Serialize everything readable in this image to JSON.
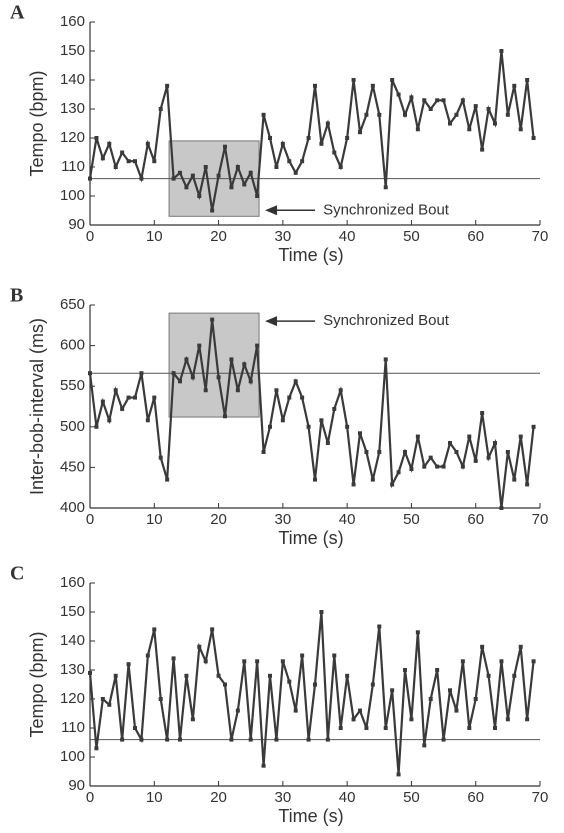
{
  "chart_data": [
    {
      "type": "line",
      "label": "A",
      "xlabel": "Time (s)",
      "ylabel": "Tempo (bpm)",
      "xlim": [
        0,
        70
      ],
      "xticks": [
        0,
        10,
        20,
        30,
        40,
        50,
        60,
        70
      ],
      "ylim": [
        90,
        160
      ],
      "yticks": [
        90,
        100,
        110,
        120,
        130,
        140,
        150,
        160
      ],
      "reference_line": 106,
      "highlight": {
        "x": [
          12.3,
          26.3
        ],
        "y": [
          93,
          119
        ],
        "color": "#c8c8c8"
      },
      "annotation": "Synchronized Bout",
      "x": [
        0,
        1,
        2,
        3,
        4,
        5,
        6,
        7,
        8,
        9,
        10,
        11,
        12,
        13,
        14,
        15,
        16,
        17,
        18,
        19,
        20,
        21,
        22,
        23,
        24,
        25,
        26,
        27,
        28,
        29,
        30,
        31,
        32,
        33,
        34,
        35,
        36,
        37,
        38,
        39,
        40,
        41,
        42,
        43,
        44,
        45,
        46,
        47,
        48,
        49,
        50,
        51,
        52,
        53,
        54,
        55,
        56,
        57,
        58,
        59,
        60,
        61,
        62,
        63,
        64,
        65,
        66,
        67,
        68,
        69
      ],
      "series": [
        {
          "color": "#3a3a3a",
          "values": [
            106,
            120,
            113,
            118,
            110,
            115,
            112,
            112,
            106,
            118,
            112,
            130,
            138,
            106,
            108,
            103,
            107,
            100,
            110,
            95,
            107,
            117,
            103,
            110,
            104,
            108,
            100,
            128,
            120,
            110,
            118,
            112,
            108,
            112,
            120,
            138,
            118,
            125,
            115,
            110,
            120,
            140,
            122,
            128,
            138,
            128,
            103,
            140,
            135,
            128,
            134,
            123,
            133,
            130,
            133,
            133,
            125,
            128,
            133,
            123,
            131,
            116,
            130,
            125,
            150,
            128,
            138,
            123,
            140,
            120
          ]
        }
      ]
    },
    {
      "type": "line",
      "label": "B",
      "xlabel": "Time (s)",
      "ylabel": "Inter-bob-interval (ms)",
      "xlim": [
        0,
        70
      ],
      "xticks": [
        0,
        10,
        20,
        30,
        40,
        50,
        60,
        70
      ],
      "ylim": [
        400,
        650
      ],
      "yticks": [
        400,
        450,
        500,
        550,
        600,
        650
      ],
      "reference_line": 566,
      "highlight": {
        "x": [
          12.3,
          26.3
        ],
        "y": [
          512,
          640
        ],
        "color": "#c8c8c8"
      },
      "annotation": "Synchronized Bout",
      "x": [
        0,
        1,
        2,
        3,
        4,
        5,
        6,
        7,
        8,
        9,
        10,
        11,
        12,
        13,
        14,
        15,
        16,
        17,
        18,
        19,
        20,
        21,
        22,
        23,
        24,
        25,
        26,
        27,
        28,
        29,
        30,
        31,
        32,
        33,
        34,
        35,
        36,
        37,
        38,
        39,
        40,
        41,
        42,
        43,
        44,
        45,
        46,
        47,
        48,
        49,
        50,
        51,
        52,
        53,
        54,
        55,
        56,
        57,
        58,
        59,
        60,
        61,
        62,
        63,
        64,
        65,
        66,
        67,
        68,
        69
      ],
      "series": [
        {
          "color": "#3a3a3a",
          "values": [
            566,
            500,
            531,
            508,
            545,
            522,
            536,
            536,
            566,
            508,
            536,
            462,
            435,
            566,
            556,
            583,
            561,
            600,
            545,
            632,
            561,
            513,
            583,
            545,
            577,
            556,
            600,
            469,
            500,
            545,
            508,
            536,
            556,
            536,
            500,
            435,
            508,
            480,
            522,
            545,
            500,
            429,
            492,
            469,
            435,
            469,
            583,
            429,
            444,
            469,
            448,
            488,
            451,
            462,
            451,
            451,
            480,
            469,
            451,
            488,
            458,
            517,
            462,
            480,
            400,
            469,
            435,
            488,
            429,
            500
          ]
        }
      ]
    },
    {
      "type": "line",
      "label": "C",
      "xlabel": "Time (s)",
      "ylabel": "Tempo (bpm)",
      "xlim": [
        0,
        70
      ],
      "xticks": [
        0,
        10,
        20,
        30,
        40,
        50,
        60,
        70
      ],
      "ylim": [
        90,
        160
      ],
      "yticks": [
        90,
        100,
        110,
        120,
        130,
        140,
        150,
        160
      ],
      "reference_line": 106,
      "x": [
        0,
        1,
        2,
        3,
        4,
        5,
        6,
        7,
        8,
        9,
        10,
        11,
        12,
        13,
        14,
        15,
        16,
        17,
        18,
        19,
        20,
        21,
        22,
        23,
        24,
        25,
        26,
        27,
        28,
        29,
        30,
        31,
        32,
        33,
        34,
        35,
        36,
        37,
        38,
        39,
        40,
        41,
        42,
        43,
        44,
        45,
        46,
        47,
        48,
        49,
        50,
        51,
        52,
        53,
        54,
        55,
        56,
        57,
        58,
        59,
        60,
        61,
        62,
        63,
        64,
        65,
        66,
        67,
        68,
        69
      ],
      "series": [
        {
          "color": "#3a3a3a",
          "values": [
            129,
            103,
            120,
            118,
            128,
            106,
            132,
            110,
            106,
            135,
            144,
            120,
            106,
            134,
            106,
            128,
            113,
            138,
            133,
            144,
            128,
            125,
            106,
            116,
            133,
            106,
            133,
            97,
            128,
            106,
            133,
            126,
            116,
            135,
            106,
            125,
            150,
            106,
            135,
            110,
            128,
            113,
            116,
            110,
            125,
            145,
            110,
            123,
            94,
            130,
            113,
            143,
            104,
            120,
            130,
            106,
            123,
            116,
            133,
            110,
            120,
            138,
            128,
            110,
            133,
            113,
            128,
            138,
            113,
            133
          ]
        }
      ]
    }
  ]
}
